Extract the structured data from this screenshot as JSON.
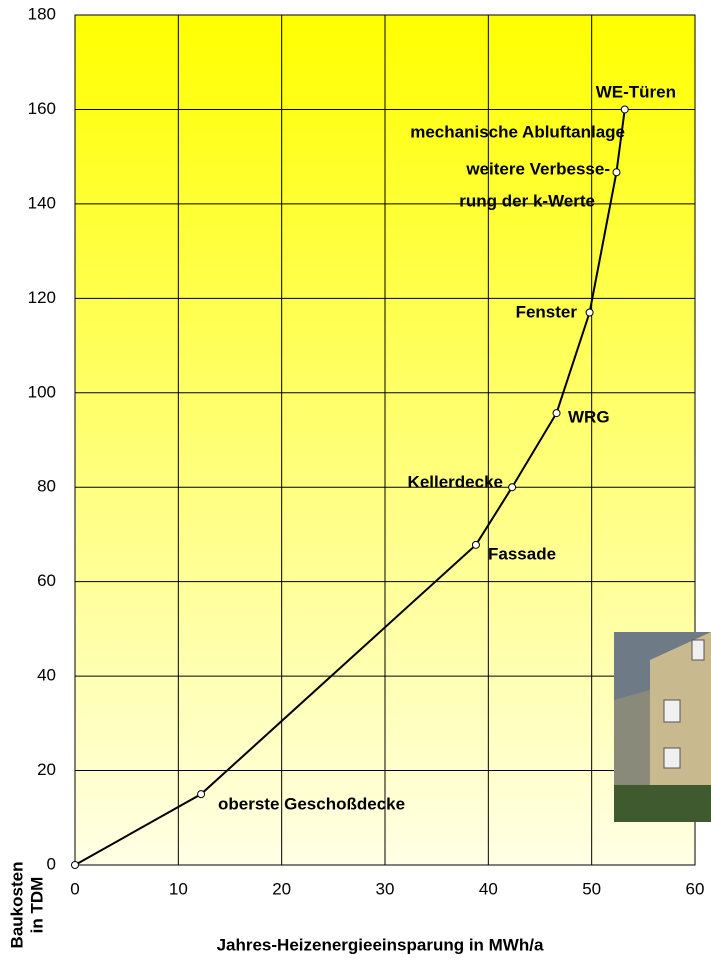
{
  "chart_data": {
    "type": "line",
    "x_label": "Jahres-Heizenergieeinsparung in MWh/a",
    "y_label": [
      "Baukosten",
      "in TDM"
    ],
    "series": [
      {
        "color": "#000000",
        "x": [
          0,
          12.2,
          38.8,
          42.3,
          46.6,
          49.8,
          52.4,
          53.2
        ],
        "values": [
          0,
          15,
          67.8,
          80,
          95.7,
          117,
          146.7,
          160
        ]
      }
    ],
    "annotations": [
      "oberste Geschoßdecke",
      "Fassade",
      "Kellerdecke",
      "WRG",
      "Fenster",
      "weitere Verbesse-",
      "rung der k-Werte",
      "mechanische Abluftanlage",
      "WE-Türen"
    ],
    "xlim": [
      0,
      60
    ],
    "xticks": [
      0,
      10,
      20,
      30,
      40,
      50,
      60
    ],
    "ylim": [
      0,
      180
    ],
    "yticks": [
      0,
      20,
      40,
      60,
      80,
      100,
      120,
      140,
      160,
      180
    ],
    "grid": true
  }
}
